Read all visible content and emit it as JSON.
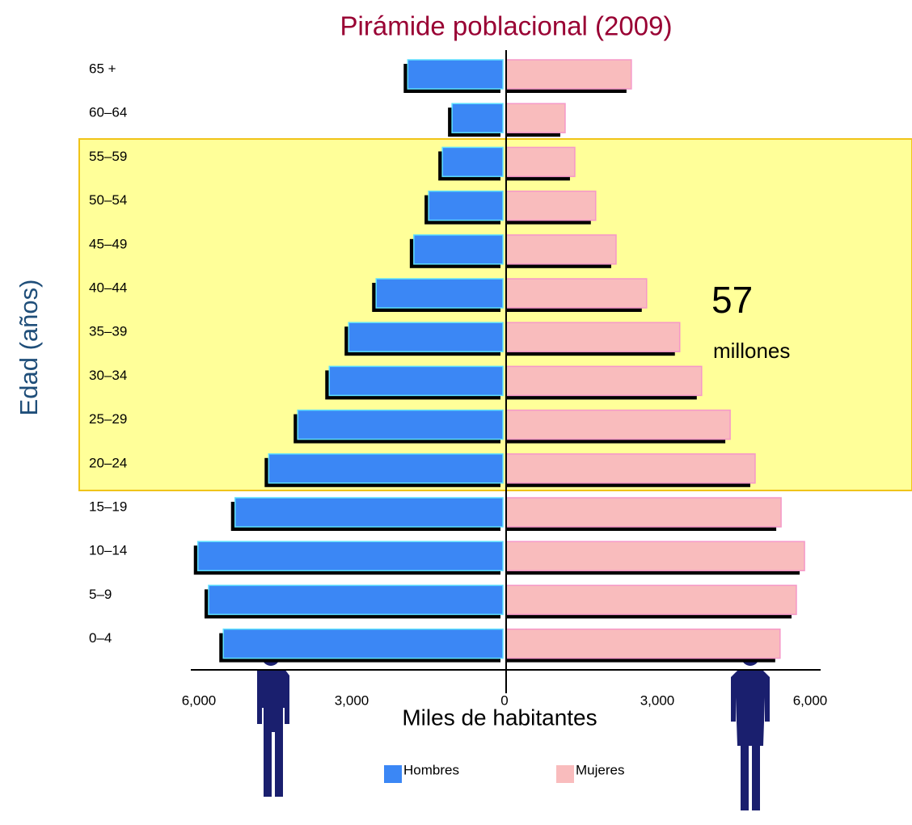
{
  "chart_data": {
    "type": "pyramid",
    "title": "Pirámide poblacional (2009)",
    "x_label": "Miles de habitantes",
    "y_label": "Edad  (años)",
    "categories": [
      "65 +",
      "60–64",
      "55–59",
      "50–54",
      "45–49",
      "40–44",
      "35–39",
      "30–34",
      "25–29",
      "20–24",
      "15–19",
      "10–14",
      "5–9",
      "0–4"
    ],
    "series": [
      {
        "name": "Hombres",
        "color": "#3b87f5",
        "side": "left",
        "values": [
          1900,
          1030,
          1220,
          1490,
          1780,
          2520,
          3060,
          3440,
          4060,
          4630,
          5290,
          6020,
          5810,
          5520
        ]
      },
      {
        "name": "Mujeres",
        "color": "#f9bcbd",
        "side": "right",
        "values": [
          2490,
          1190,
          1380,
          1790,
          2190,
          2790,
          3440,
          3870,
          4430,
          4920,
          5430,
          5890,
          5730,
          5410
        ]
      }
    ],
    "xlim": [
      -6000,
      6000
    ],
    "xticks": [
      {
        "value": -6000,
        "label": "6,000"
      },
      {
        "value": -3000,
        "label": "3,000"
      },
      0,
      {
        "value": 3000,
        "label": "3,000"
      },
      {
        "value": 6000,
        "label": "6,000"
      }
    ],
    "annotation": {
      "text": "57",
      "subtext": "millones"
    }
  }
}
